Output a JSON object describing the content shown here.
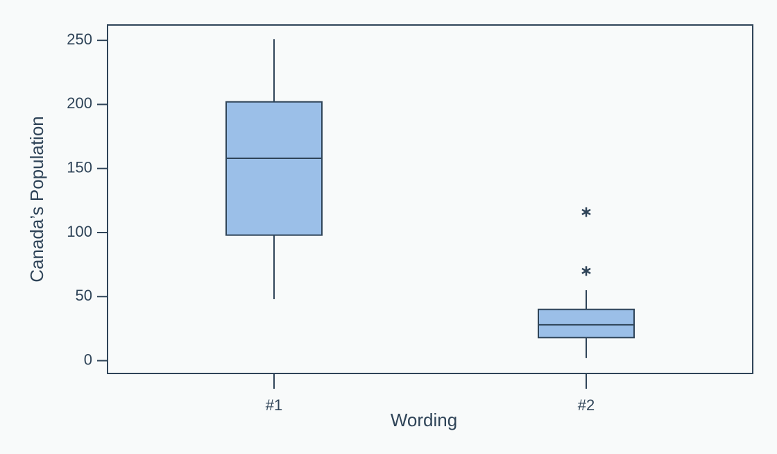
{
  "chart_data": {
    "type": "box",
    "x_label": "Wording",
    "y_label": "Canada’s Population",
    "categories": [
      "#1",
      "#2"
    ],
    "boxes": [
      {
        "whislo": 48,
        "q1": 98,
        "med": 158,
        "q3": 202,
        "whishi": 251,
        "fliers": []
      },
      {
        "whislo": 2,
        "q1": 18,
        "med": 28,
        "q3": 40,
        "whishi": 55,
        "fliers": [
          70,
          116
        ]
      }
    ],
    "color": "#9bbfe8",
    "edge_color": "#2f4458",
    "ylim": [
      -10,
      262
    ],
    "yticks": [
      0,
      50,
      100,
      150,
      200,
      250
    ]
  }
}
